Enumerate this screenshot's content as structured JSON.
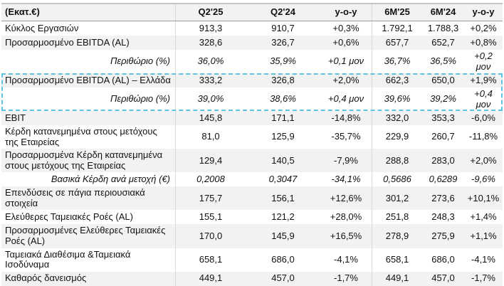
{
  "colors": {
    "highlight_dashed_border": "#5fc3e3",
    "row_stripe": "#f2f2f2",
    "table_top_border": "#c4c4c4",
    "text": "#111111"
  },
  "chart_data": {
    "type": "table",
    "title": "",
    "units_header": "(Εκατ.€)",
    "columns": [
      "(Εκατ.€)",
      "Q2'25",
      "Q2'24",
      "y-o-y",
      "6M'25",
      "6M'24",
      "y-o-y"
    ],
    "rows": [
      {
        "label": "Κύκλος Εργασιών",
        "values": [
          "913,3",
          "910,7",
          "+0,3%",
          "1.792,1",
          "1.788,3",
          "+0,2%"
        ]
      },
      {
        "label": "Προσαρμοσμένο EBITDA (AL)",
        "values": [
          "328,6",
          "326,7",
          "+0,6%",
          "657,7",
          "652,7",
          "+0,8%"
        ]
      },
      {
        "label": "Περιθώριο (%)",
        "values": [
          "36,0%",
          "35,9%",
          "+0,1 μον",
          "36,7%",
          "36,5%",
          "+0,2 μον"
        ],
        "italic": true,
        "label_right": true
      },
      {
        "label": "Προσαρμοσμένο EBITDA (AL) – Ελλάδα",
        "values": [
          "333,2",
          "326,8",
          "+2,0%",
          "662,3",
          "650,0",
          "+1,9%"
        ],
        "highlighted": true
      },
      {
        "label": "Περιθώριο (%)",
        "values": [
          "39,0%",
          "38,6%",
          "+0,4 μον",
          "39,6%",
          "39,2%",
          "+0,4 μον"
        ],
        "italic": true,
        "label_right": true,
        "highlighted": true
      },
      {
        "label": "EBIT",
        "values": [
          "145,8",
          "171,1",
          "-14,8%",
          "332,0",
          "353,3",
          "-6,0%"
        ]
      },
      {
        "label": "Κέρδη κατανεμημένα στους μετόχους της Εταιρείας",
        "values": [
          "81,0",
          "125,9",
          "-35,7%",
          "229,9",
          "260,7",
          "-11,8%"
        ]
      },
      {
        "label": "Προσαρμοσμένα Κέρδη κατανεμημένα στους μετόχους της Εταιρείας",
        "values": [
          "129,4",
          "140,5",
          "-7,9%",
          "288,8",
          "283,0",
          "+2,0%"
        ]
      },
      {
        "label": "Βασικά Κέρδη ανά μετοχή (€)",
        "values": [
          "0,2008",
          "0,3047",
          "-34,1%",
          "0,5686",
          "0,6289",
          "-9,6%"
        ],
        "italic": true,
        "label_right": true
      },
      {
        "label": "Επενδύσεις σε πάγια περιουσιακά στοιχεία",
        "values": [
          "175,7",
          "156,1",
          "+12,6%",
          "301,2",
          "273,6",
          "+10,1%"
        ]
      },
      {
        "label": "Ελεύθερες Ταμειακές Ροές (AL)",
        "values": [
          "155,1",
          "121,2",
          "+28,0%",
          "251,8",
          "248,3",
          "+1,4%"
        ]
      },
      {
        "label": "Προσαρμοσμένες Ελεύθερες Ταμειακές Ροές (AL)",
        "values": [
          "170,0",
          "145,9",
          "+16,5%",
          "278,9",
          "275,9",
          "+1,1%"
        ]
      },
      {
        "label": "Ταμειακά Διαθέσιμα &Ταμειακά Ισοδύναμα",
        "values": [
          "658,1",
          "686,0",
          "-4,1%",
          "658,1",
          "686,0",
          "-4,1%"
        ]
      },
      {
        "label": "Καθαρός δανεισμός",
        "values": [
          "449,1",
          "457,0",
          "-1,7%",
          "449,1",
          "457,0",
          "-1,7%"
        ]
      }
    ],
    "layout_hints": {
      "highlighted_rows_note": "Rows 'Προσαρμοσμένο EBITDA (AL) – Ελλάδα' and following 'Περιθώριο (%)' are enclosed in a light-blue dashed box",
      "column_dividers_after": [
        "(Εκατ.€)",
        "y-o-y (first)"
      ],
      "stripes": "alternating white / light gray starting white on first data row"
    }
  }
}
